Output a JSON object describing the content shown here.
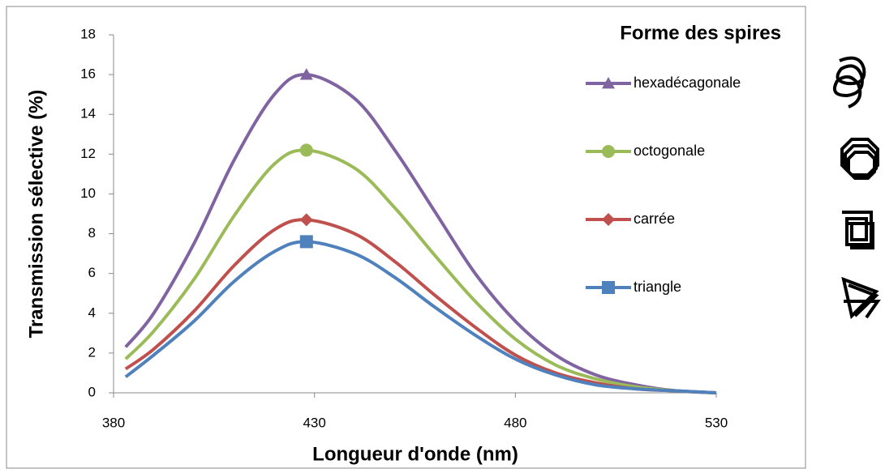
{
  "chart_data": {
    "type": "line",
    "legend_title": "Forme des spires",
    "x_label": "Longueur d'onde (nm)",
    "y_label": "Transmission sélective (%)",
    "x": [
      383,
      390,
      400,
      410,
      420,
      428,
      440,
      450,
      460,
      470,
      480,
      490,
      500,
      510,
      520,
      530
    ],
    "series": [
      {
        "name": "hexadécagonale",
        "color": "#8064a2",
        "marker": "triangle",
        "values": [
          2.3,
          4.0,
          7.5,
          11.7,
          15.0,
          16,
          14.8,
          12.2,
          9.1,
          6.0,
          3.6,
          1.9,
          0.9,
          0.4,
          0.1,
          0.0
        ]
      },
      {
        "name": "octogonale",
        "color": "#9bbb59",
        "marker": "circle",
        "values": [
          1.7,
          3.1,
          5.7,
          8.9,
          11.5,
          12.2,
          11.3,
          9.3,
          6.9,
          4.6,
          2.7,
          1.4,
          0.7,
          0.3,
          0.1,
          0.0
        ]
      },
      {
        "name": "carrée",
        "color": "#c0504d",
        "marker": "diamond",
        "values": [
          1.2,
          2.2,
          4.1,
          6.4,
          8.2,
          8.7,
          8.0,
          6.6,
          4.9,
          3.3,
          1.9,
          1.0,
          0.5,
          0.2,
          0.1,
          0.0
        ]
      },
      {
        "name": "triangle",
        "color": "#4f81bd",
        "marker": "square",
        "values": [
          0.8,
          1.9,
          3.6,
          5.6,
          7.1,
          7.6,
          7.0,
          5.8,
          4.3,
          2.9,
          1.7,
          0.9,
          0.4,
          0.2,
          0.1,
          0.0
        ]
      }
    ],
    "xlim": [
      380,
      530
    ],
    "xticks": [
      380,
      430,
      480,
      530
    ],
    "ylim": [
      0,
      18
    ],
    "yticks": [
      0,
      2,
      4,
      6,
      8,
      10,
      12,
      14,
      16,
      18
    ]
  }
}
